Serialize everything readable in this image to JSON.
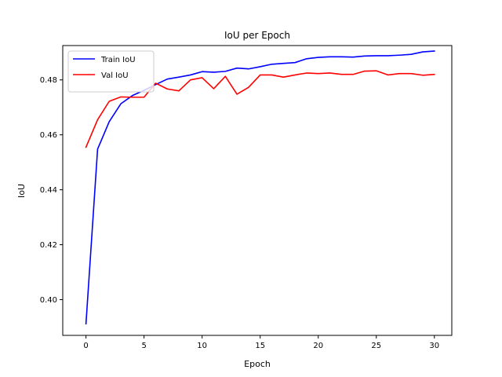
{
  "chart_data": {
    "type": "line",
    "title": "IoU per Epoch",
    "xlabel": "Epoch",
    "ylabel": "IoU",
    "xlim": [
      -2,
      31.5
    ],
    "ylim": [
      0.387,
      0.4925
    ],
    "xticks": [
      0,
      5,
      10,
      15,
      20,
      25,
      30
    ],
    "xtick_labels": [
      "0",
      "5",
      "10",
      "15",
      "20",
      "25",
      "30"
    ],
    "yticks": [
      0.4,
      0.42,
      0.44,
      0.46,
      0.48
    ],
    "ytick_labels": [
      "0.40",
      "0.42",
      "0.44",
      "0.46",
      "0.48"
    ],
    "grid": false,
    "legend_position": "top-left",
    "x": [
      0,
      1,
      2,
      3,
      4,
      5,
      6,
      7,
      8,
      9,
      10,
      11,
      12,
      13,
      14,
      15,
      16,
      17,
      18,
      19,
      20,
      21,
      22,
      23,
      24,
      25,
      26,
      27,
      28,
      29,
      30
    ],
    "series": [
      {
        "name": "Train IoU",
        "color": "#0000ff",
        "values": [
          0.3912,
          0.4548,
          0.4648,
          0.4713,
          0.4743,
          0.4762,
          0.4783,
          0.4803,
          0.481,
          0.4818,
          0.483,
          0.4828,
          0.4831,
          0.4843,
          0.484,
          0.4848,
          0.4857,
          0.486,
          0.4863,
          0.4877,
          0.4882,
          0.4884,
          0.4884,
          0.4883,
          0.4887,
          0.4888,
          0.4888,
          0.489,
          0.4893,
          0.4902,
          0.4905
        ]
      },
      {
        "name": "Val IoU",
        "color": "#ff0000",
        "values": [
          0.4555,
          0.4655,
          0.4722,
          0.4738,
          0.4737,
          0.4737,
          0.4788,
          0.4767,
          0.476,
          0.48,
          0.4808,
          0.4768,
          0.4813,
          0.4748,
          0.4773,
          0.4818,
          0.4818,
          0.481,
          0.4818,
          0.4825,
          0.4823,
          0.4825,
          0.482,
          0.482,
          0.4832,
          0.4833,
          0.4818,
          0.4823,
          0.4823,
          0.4817,
          0.482
        ]
      }
    ]
  }
}
